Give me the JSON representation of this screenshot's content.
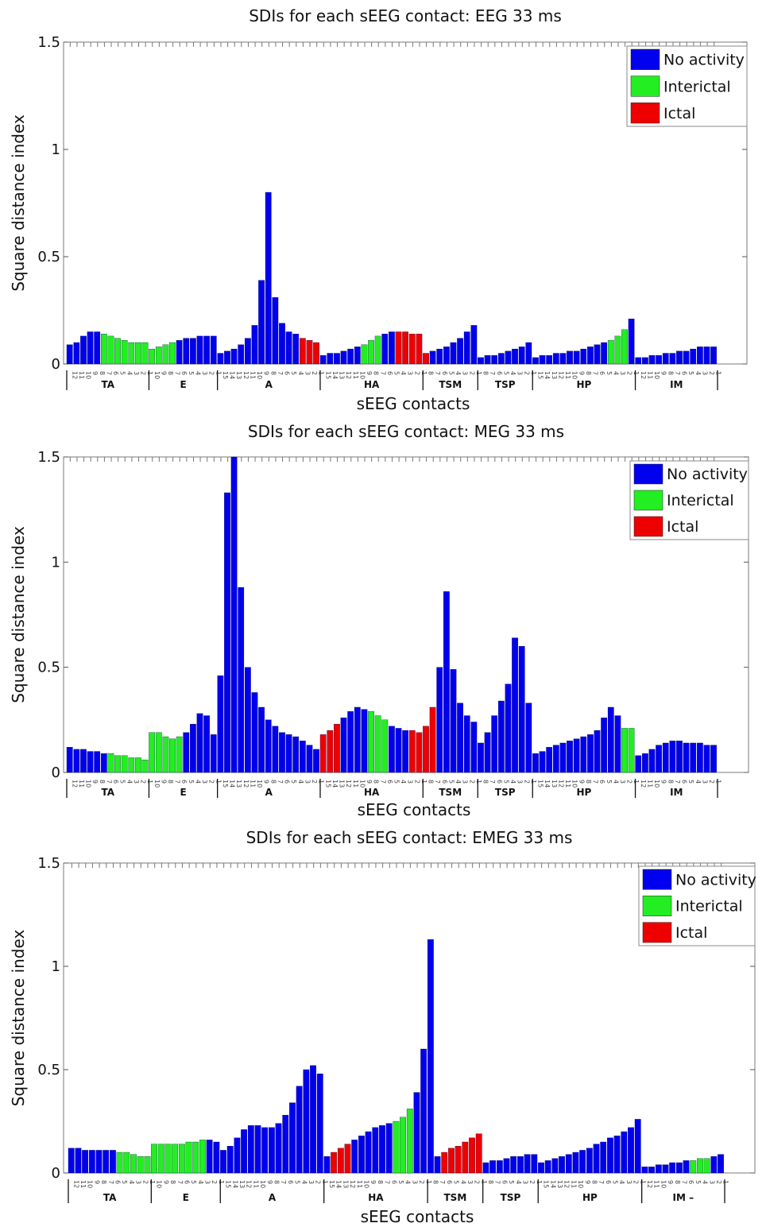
{
  "chart_data": [
    {
      "type": "bar",
      "title": "SDIs for each sEEG contact: EEG 33 ms",
      "xlabel": "sEEG contacts",
      "ylabel": "Square distance index",
      "ylim": [
        0,
        1.5
      ],
      "yticks": [
        "0",
        "0.5",
        "1",
        "1.5"
      ],
      "legend": {
        "placement": "top-right",
        "entries": [
          "No activity",
          "Interictal",
          "Ictal"
        ]
      },
      "groups": [
        {
          "name": "TA",
          "n": 12
        },
        {
          "name": "E",
          "n": 10
        },
        {
          "name": "A",
          "n": 15
        },
        {
          "name": "HA",
          "n": 15
        },
        {
          "name": "TSM",
          "n": 8
        },
        {
          "name": "TSP",
          "n": 8
        },
        {
          "name": "HP",
          "n": 15
        },
        {
          "name": "IM",
          "n": 12
        }
      ],
      "values": [
        0.09,
        0.1,
        0.13,
        0.15,
        0.15,
        0.14,
        0.13,
        0.12,
        0.11,
        0.1,
        0.1,
        0.1,
        0.07,
        0.08,
        0.09,
        0.1,
        0.11,
        0.12,
        0.12,
        0.13,
        0.13,
        0.13,
        0.05,
        0.06,
        0.07,
        0.09,
        0.12,
        0.18,
        0.39,
        0.8,
        0.31,
        0.19,
        0.15,
        0.14,
        0.12,
        0.11,
        0.1,
        0.04,
        0.05,
        0.05,
        0.06,
        0.07,
        0.08,
        0.09,
        0.11,
        0.13,
        0.14,
        0.15,
        0.15,
        0.15,
        0.14,
        0.14,
        0.05,
        0.06,
        0.07,
        0.08,
        0.1,
        0.12,
        0.15,
        0.18,
        0.03,
        0.04,
        0.04,
        0.05,
        0.06,
        0.07,
        0.08,
        0.1,
        0.03,
        0.04,
        0.04,
        0.05,
        0.05,
        0.06,
        0.06,
        0.07,
        0.08,
        0.09,
        0.1,
        0.11,
        0.13,
        0.16,
        0.21,
        0.03,
        0.03,
        0.04,
        0.04,
        0.05,
        0.05,
        0.06,
        0.06,
        0.07,
        0.08,
        0.08,
        0.08
      ],
      "colors": "BBBBBGGGGGGGGGGGBBBBBBBBBBBBBBBBBBRRRBBBBBBGGGBBRRRRRBBBBBBBBBBBBBBBBBBBBBBBBBBGGGBBBBBBBBBBBB",
      "color_key": {
        "B": "#0000ee",
        "G": "#22ee22",
        "R": "#ee0000"
      }
    },
    {
      "type": "bar",
      "title": "SDIs for each sEEG contact: MEG 33 ms",
      "xlabel": "sEEG contacts",
      "ylabel": "Square distance index",
      "ylim": [
        0,
        1.5
      ],
      "yticks": [
        "0",
        "0.5",
        "1",
        "1.5"
      ],
      "legend": {
        "placement": "top-right",
        "entries": [
          "No activity",
          "Interictal",
          "Ictal"
        ]
      },
      "groups": [
        {
          "name": "TA",
          "n": 12
        },
        {
          "name": "E",
          "n": 10
        },
        {
          "name": "A",
          "n": 15
        },
        {
          "name": "HA",
          "n": 15
        },
        {
          "name": "TSM",
          "n": 8
        },
        {
          "name": "TSP",
          "n": 8
        },
        {
          "name": "HP",
          "n": 15
        },
        {
          "name": "IM",
          "n": 12
        }
      ],
      "values": [
        0.12,
        0.11,
        0.11,
        0.1,
        0.1,
        0.09,
        0.09,
        0.08,
        0.08,
        0.07,
        0.07,
        0.06,
        0.19,
        0.19,
        0.17,
        0.16,
        0.17,
        0.19,
        0.23,
        0.28,
        0.27,
        0.18,
        0.46,
        1.33,
        1.5,
        0.88,
        0.5,
        0.38,
        0.31,
        0.25,
        0.22,
        0.19,
        0.18,
        0.17,
        0.15,
        0.13,
        0.11,
        0.18,
        0.2,
        0.23,
        0.26,
        0.29,
        0.31,
        0.3,
        0.29,
        0.27,
        0.25,
        0.22,
        0.21,
        0.2,
        0.2,
        0.19,
        0.22,
        0.31,
        0.5,
        0.86,
        0.49,
        0.33,
        0.27,
        0.24,
        0.14,
        0.19,
        0.27,
        0.34,
        0.42,
        0.64,
        0.6,
        0.33,
        0.09,
        0.1,
        0.12,
        0.13,
        0.14,
        0.15,
        0.16,
        0.17,
        0.18,
        0.2,
        0.26,
        0.31,
        0.27,
        0.21,
        0.21,
        0.08,
        0.09,
        0.11,
        0.13,
        0.14,
        0.15,
        0.15,
        0.14,
        0.14,
        0.14,
        0.13,
        0.13
      ],
      "colors": "BBBBBBGGGGGGGGGGGBBBBBBBBBBBBBBBBBBBBRRRBBBBGGGBBBRRRRBBBBBBBBBBBBBBBBBBBBBBBBBBBGGBBBBBBBBBBBBB",
      "color_key": {
        "B": "#0000ee",
        "G": "#22ee22",
        "R": "#ee0000"
      }
    },
    {
      "type": "bar",
      "title": "SDIs for each sEEG contact: EMEG 33 ms",
      "xlabel": "sEEG contacts",
      "ylabel": "Square distance index",
      "ylim": [
        0,
        1.5
      ],
      "yticks": [
        "0",
        "0.5",
        "1",
        "1.5"
      ],
      "legend": {
        "placement": "top-right",
        "entries": [
          "No activity",
          "Interictal",
          "Ictal"
        ]
      },
      "groups": [
        {
          "name": "TA",
          "n": 12
        },
        {
          "name": "E",
          "n": 10
        },
        {
          "name": "A",
          "n": 15
        },
        {
          "name": "HA",
          "n": 15
        },
        {
          "name": "TSM",
          "n": 8
        },
        {
          "name": "TSP",
          "n": 8
        },
        {
          "name": "HP",
          "n": 15
        },
        {
          "name": "IM",
          "n": 12
        }
      ],
      "group_suffix": {
        "IM": "–"
      },
      "values": [
        0.12,
        0.12,
        0.11,
        0.11,
        0.11,
        0.11,
        0.11,
        0.1,
        0.1,
        0.09,
        0.08,
        0.08,
        0.14,
        0.14,
        0.14,
        0.14,
        0.14,
        0.15,
        0.15,
        0.16,
        0.16,
        0.15,
        0.11,
        0.13,
        0.17,
        0.21,
        0.23,
        0.23,
        0.22,
        0.22,
        0.24,
        0.28,
        0.34,
        0.42,
        0.5,
        0.52,
        0.48,
        0.08,
        0.1,
        0.12,
        0.14,
        0.16,
        0.18,
        0.2,
        0.22,
        0.23,
        0.24,
        0.25,
        0.27,
        0.31,
        0.39,
        0.6,
        1.13,
        0.08,
        0.1,
        0.12,
        0.13,
        0.15,
        0.17,
        0.19,
        0.05,
        0.06,
        0.06,
        0.07,
        0.08,
        0.08,
        0.09,
        0.09,
        0.05,
        0.06,
        0.07,
        0.08,
        0.09,
        0.1,
        0.11,
        0.12,
        0.14,
        0.15,
        0.17,
        0.18,
        0.2,
        0.22,
        0.26,
        0.03,
        0.03,
        0.04,
        0.04,
        0.05,
        0.05,
        0.06,
        0.06,
        0.07,
        0.07,
        0.08,
        0.09
      ],
      "colors": "BBBBBBBGGGGGGGGGGGGGBBBBBBBBBBBBBBBBBBRRRBBBBBBGGGBBBBRRRRRRBBBBBBBBBBBBBBBBBBBBBBBBBBBBBBGGGB",
      "color_key": {
        "B": "#0000ee",
        "G": "#22ee22",
        "R": "#ee0000"
      }
    }
  ]
}
